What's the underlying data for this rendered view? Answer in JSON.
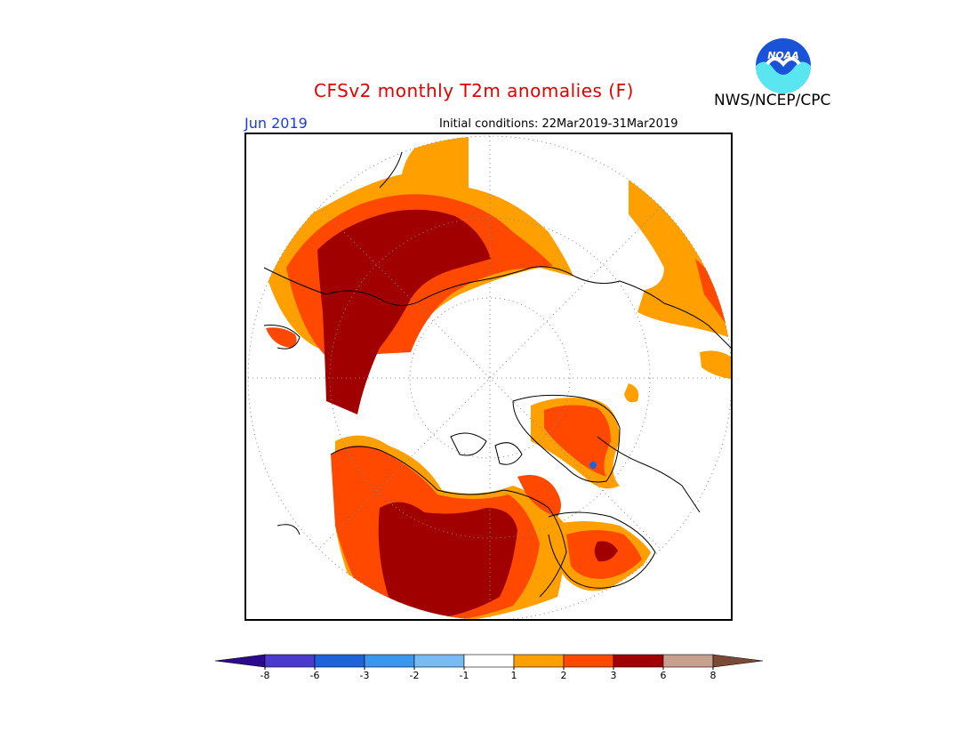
{
  "title": "CFSv2 monthly T2m anomalies (F)",
  "agency": "NWS/NCEP/CPC",
  "logo_text": "NOAA",
  "month": "Jun 2019",
  "initial_conditions": "Initial conditions: 22Mar2019-31Mar2019",
  "legend": {
    "bins": [
      {
        "color": "#2c0a8c"
      },
      {
        "color": "#4a3cc8"
      },
      {
        "color": "#1e64d6"
      },
      {
        "color": "#3c96ea"
      },
      {
        "color": "#78baf2"
      },
      {
        "color": "#ffffff"
      },
      {
        "color": "#ffa000"
      },
      {
        "color": "#ff4800"
      },
      {
        "color": "#a00000"
      },
      {
        "color": "#c8a090"
      },
      {
        "color": "#7a4a36"
      }
    ],
    "tick_labels": [
      "-8",
      "-6",
      "-3",
      "-2",
      "-1",
      "1",
      "2",
      "3",
      "6",
      "8"
    ]
  },
  "colors": {
    "anomaly_1_2": "#ffa000",
    "anomaly_2_3": "#ff4800",
    "anomaly_3_6": "#a00000",
    "coastline": "#000000",
    "graticule": "#888888"
  }
}
